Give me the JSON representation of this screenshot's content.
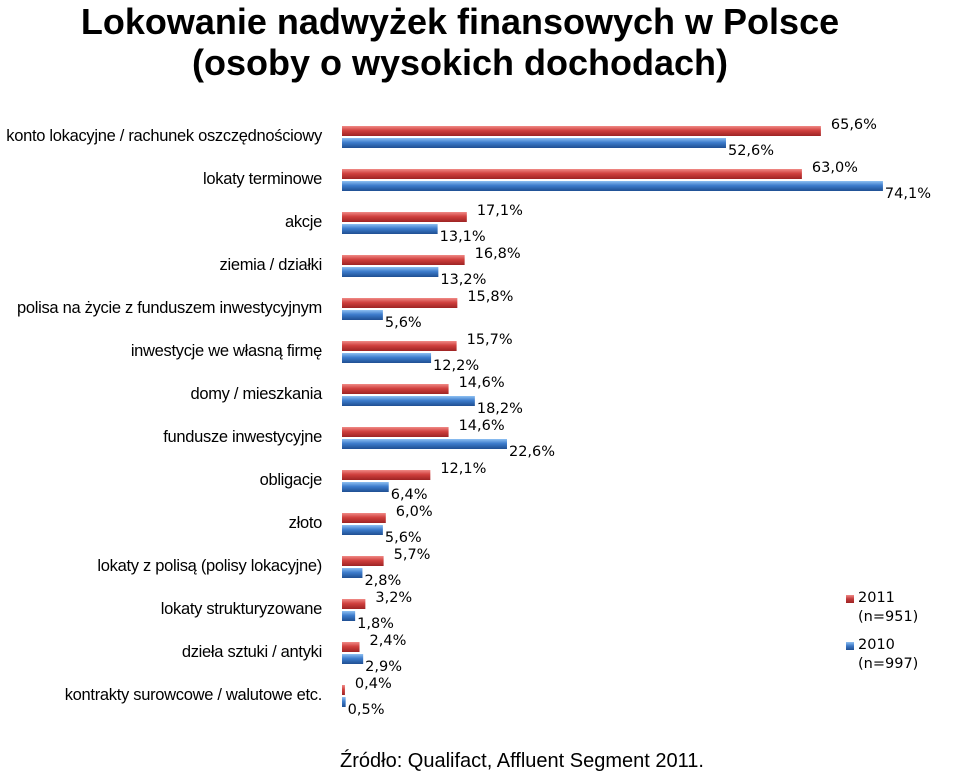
{
  "title_line1": "Lokowanie nadwyżek finansowych w Polsce",
  "title_line2": "(osoby o wysokich dochodach)",
  "source": "Źródło: Qualifact, Affluent Segment 2011.",
  "chart_data": {
    "type": "bar",
    "orientation": "horizontal",
    "categories": [
      "konto lokacyjne / rachunek  oszczędnościowy",
      "lokaty terminowe",
      "akcje",
      "ziemia / działki",
      "polisa na życie z funduszem  inwestycyjnym",
      "inwestycje we własną firmę",
      "domy / mieszkania",
      "fundusze  inwestycyjne",
      "obligacje",
      "złoto",
      "lokaty z polisą (polisy lokacyjne)",
      "lokaty strukturyzowane",
      "dzieła sztuki / antyki",
      "kontrakty surowcowe / walutowe etc."
    ],
    "series": [
      {
        "name": "2011",
        "sublabel": "(n=951)",
        "color": "#c0393b",
        "values": [
          65.6,
          63.0,
          17.1,
          16.8,
          15.8,
          15.7,
          14.6,
          14.6,
          12.1,
          6.0,
          5.7,
          3.2,
          2.4,
          0.4
        ],
        "labels": [
          "65,6%",
          "63,0%",
          "17,1%",
          "16,8%",
          "15,8%",
          "15,7%",
          "14,6%",
          "14,6%",
          "12,1%",
          "6,0%",
          "5,7%",
          "3,2%",
          "2,4%",
          "0,4%"
        ]
      },
      {
        "name": "2010",
        "sublabel": "(n=997)",
        "color": "#3b76c4",
        "values": [
          52.6,
          74.1,
          13.1,
          13.2,
          5.6,
          12.2,
          18.2,
          22.6,
          6.4,
          5.6,
          2.8,
          1.8,
          2.9,
          0.5
        ],
        "labels": [
          "52,6%",
          "74,1%",
          "13,1%",
          "13,2%",
          "5,6%",
          "12,2%",
          "18,2%",
          "22,6%",
          "6,4%",
          "5,6%",
          "2,8%",
          "1,8%",
          "2,9%",
          "0,5%"
        ]
      }
    ],
    "xlim": [
      0,
      80
    ],
    "grid": false,
    "legend_position": "bottom-right"
  }
}
